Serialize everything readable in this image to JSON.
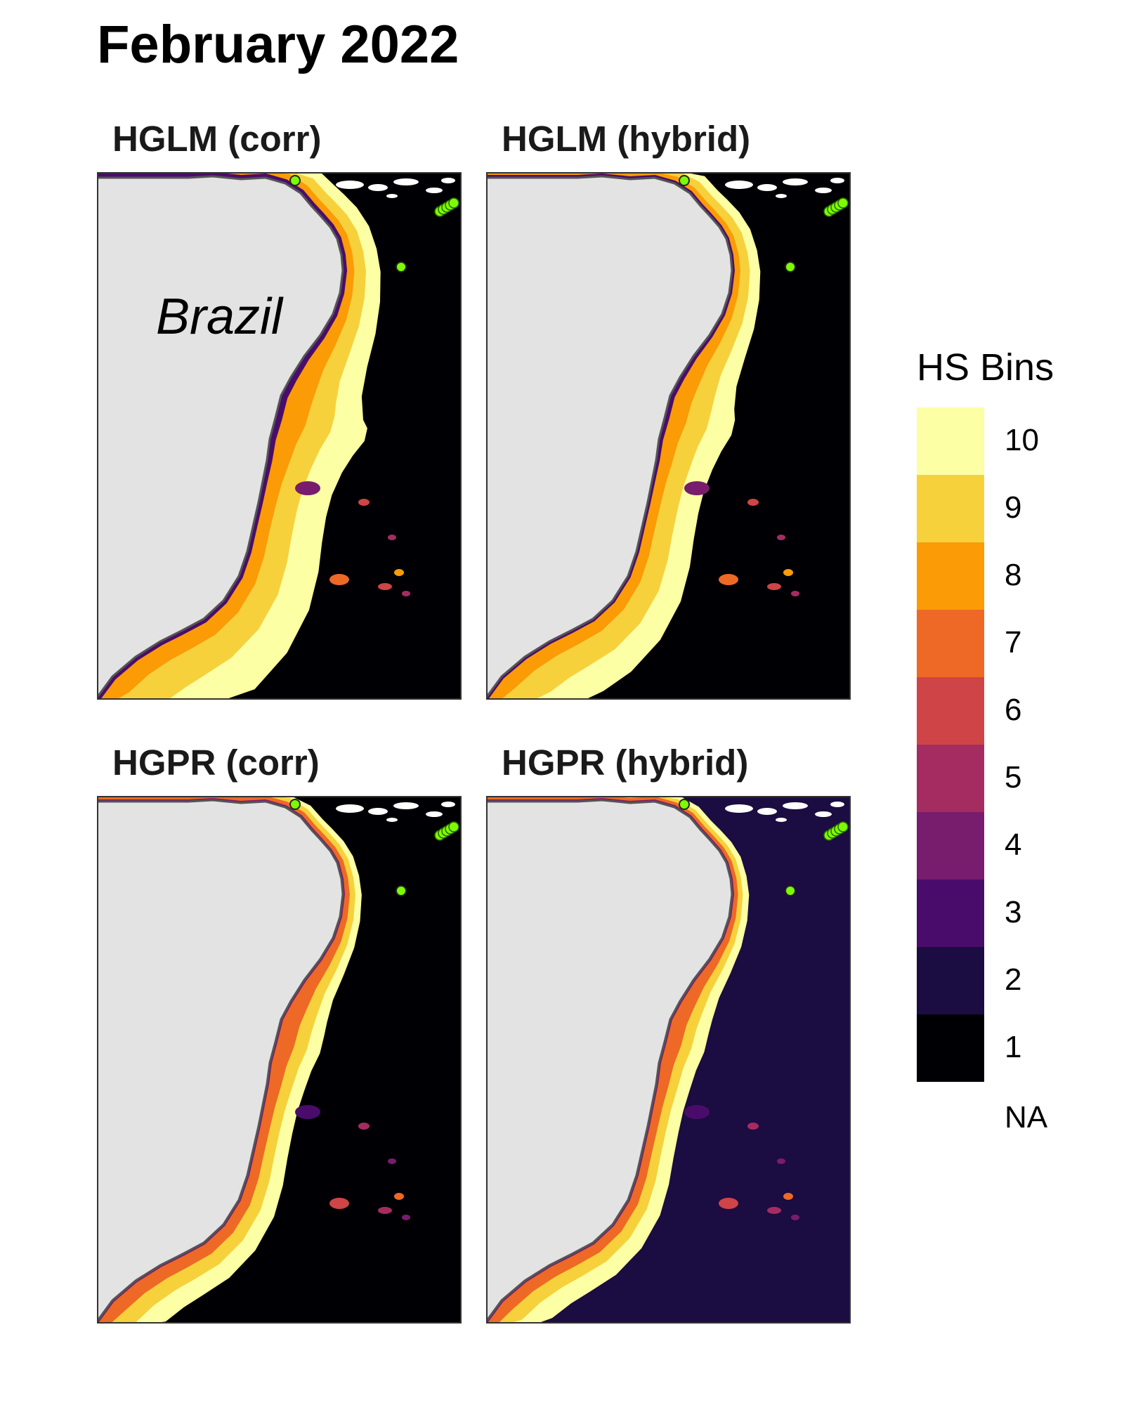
{
  "title": "February 2022",
  "country_label": "Brazil",
  "panels": [
    {
      "title": "HGLM (corr)",
      "variant": "glm-corr"
    },
    {
      "title": "HGLM (hybrid)",
      "variant": "glm-hybrid"
    },
    {
      "title": "HGPR (corr)",
      "variant": "gpr-corr"
    },
    {
      "title": "HGPR (hybrid)",
      "variant": "gpr-hybrid"
    }
  ],
  "legend": {
    "title": "HS Bins",
    "bins": [
      {
        "label": "10",
        "color": "#FCFFA4"
      },
      {
        "label": "9",
        "color": "#F6D13C"
      },
      {
        "label": "8",
        "color": "#FB9B06"
      },
      {
        "label": "7",
        "color": "#ED6925"
      },
      {
        "label": "6",
        "color": "#CF4446"
      },
      {
        "label": "5",
        "color": "#A52C60"
      },
      {
        "label": "4",
        "color": "#781C6D"
      },
      {
        "label": "3",
        "color": "#4A0C6B"
      },
      {
        "label": "2",
        "color": "#1B0C41"
      },
      {
        "label": "1",
        "color": "#000004"
      }
    ],
    "na_label": "NA"
  },
  "colors": {
    "land": "#E3E3E3",
    "coast_line": "#555555",
    "frame": "#333333",
    "marker": "#7CFC00"
  }
}
